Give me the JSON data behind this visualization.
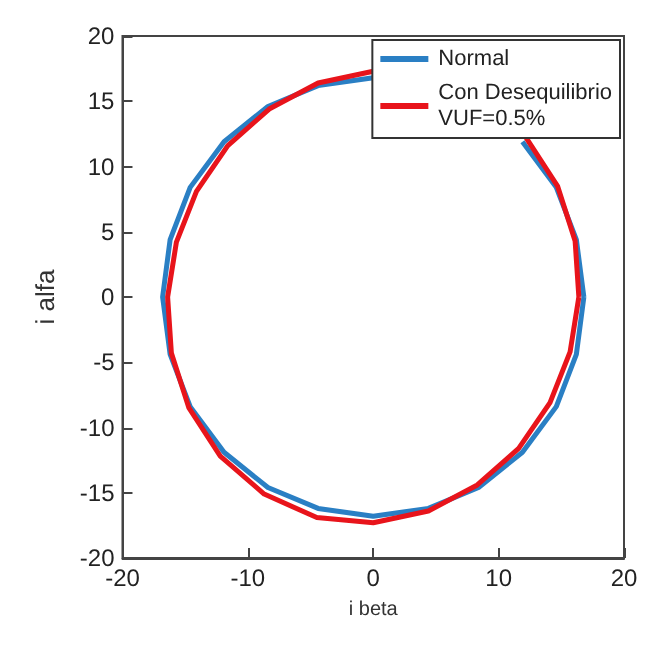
{
  "chart_data": {
    "type": "line",
    "xlabel": "i beta",
    "ylabel": "i alfa",
    "xlim": [
      -20,
      20
    ],
    "ylim": [
      -20,
      20
    ],
    "xticks": [
      -20,
      -10,
      0,
      10,
      20
    ],
    "yticks": [
      -20,
      -15,
      -10,
      -5,
      0,
      5,
      10,
      15,
      20
    ],
    "legend": "top right",
    "marker": "none",
    "series": [
      {
        "name": "Normal",
        "color": "#2a7fc4",
        "x": [
          16.8,
          16.2,
          14.6,
          11.9,
          8.4,
          4.4,
          0,
          -4.4,
          -8.4,
          -11.9,
          -14.6,
          -16.2,
          -16.8,
          -16.2,
          -14.6,
          -11.9,
          -8.4,
          -4.4,
          0,
          4.4,
          8.4,
          11.9,
          14.6,
          16.2,
          16.8
        ],
        "values": [
          0,
          4.4,
          8.4,
          11.9,
          null,
          null,
          16.8,
          16.2,
          14.6,
          11.9,
          8.4,
          4.4,
          0,
          -4.4,
          -8.4,
          -11.9,
          -14.6,
          -16.2,
          -16.8,
          -16.2,
          -14.6,
          -11.9,
          -8.4,
          -4.4,
          0
        ]
      },
      {
        "name": "Con Desequilibrio\nVUF=0.5%",
        "color": "#e8141b",
        "x": [
          16.4,
          16.1,
          14.7,
          12.2,
          8.7,
          4.5,
          0,
          -4.4,
          -8.3,
          -11.6,
          -14.1,
          -15.7,
          -16.4,
          -16.1,
          -14.7,
          -12.2,
          -8.7,
          -4.5,
          0,
          4.4,
          8.3,
          11.6,
          14.1,
          15.7,
          16.4
        ],
        "values": [
          0,
          4.3,
          8.5,
          12.2,
          null,
          null,
          17.3,
          16.4,
          14.4,
          11.6,
          8.1,
          4.2,
          0,
          -4.3,
          -8.5,
          -12.2,
          -15.1,
          -16.9,
          -17.3,
          -16.4,
          -14.4,
          -11.6,
          -8.1,
          -4.2,
          0
        ]
      }
    ]
  }
}
